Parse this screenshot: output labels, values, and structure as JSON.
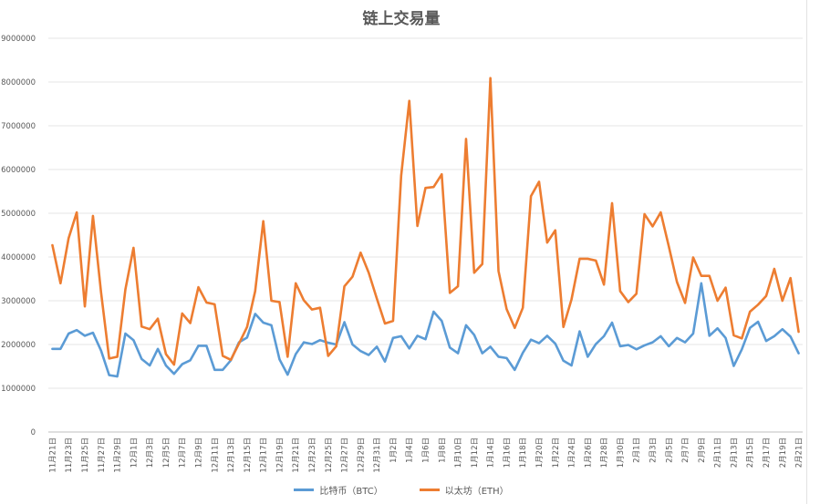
{
  "chart_data": {
    "type": "line",
    "title": "链上交易量",
    "xlabel": "",
    "ylabel": "",
    "ylim": [
      0,
      9000000
    ],
    "yticks": [
      0,
      1000000,
      2000000,
      3000000,
      4000000,
      5000000,
      6000000,
      7000000,
      8000000,
      9000000
    ],
    "ytick_labels": [
      "0",
      "1000000",
      "2000000",
      "3000000",
      "4000000",
      "5000000",
      "6000000",
      "7000000",
      "8000000",
      "9000000"
    ],
    "grid": true,
    "legend_position": "bottom",
    "x": [
      "11月21日",
      "11月22日",
      "11月23日",
      "11月24日",
      "11月25日",
      "11月26日",
      "11月27日",
      "11月28日",
      "11月29日",
      "11月30日",
      "12月1日",
      "12月2日",
      "12月3日",
      "12月4日",
      "12月5日",
      "12月6日",
      "12月7日",
      "12月8日",
      "12月9日",
      "12月10日",
      "12月11日",
      "12月12日",
      "12月13日",
      "12月14日",
      "12月15日",
      "12月16日",
      "12月17日",
      "12月18日",
      "12月19日",
      "12月20日",
      "12月21日",
      "12月22日",
      "12月23日",
      "12月24日",
      "12月25日",
      "12月26日",
      "12月27日",
      "12月28日",
      "12月29日",
      "12月30日",
      "12月31日",
      "1月1日",
      "1月2日",
      "1月3日",
      "1月4日",
      "1月5日",
      "1月6日",
      "1月7日",
      "1月8日",
      "1月9日",
      "1月10日",
      "1月11日",
      "1月12日",
      "1月13日",
      "1月14日",
      "1月15日",
      "1月16日",
      "1月17日",
      "1月18日",
      "1月19日",
      "1月20日",
      "1月21日",
      "1月22日",
      "1月23日",
      "1月24日",
      "1月25日",
      "1月26日",
      "1月27日",
      "1月28日",
      "1月29日",
      "1月30日",
      "1月31日",
      "2月1日",
      "2月2日",
      "2月3日",
      "2月4日",
      "2月5日",
      "2月6日",
      "2月7日",
      "2月8日",
      "2月9日",
      "2月10日",
      "2月11日",
      "2月12日",
      "2月13日",
      "2月14日",
      "2月15日",
      "2月16日",
      "2月17日",
      "2月18日",
      "2月19日",
      "2月20日",
      "2月21日"
    ],
    "x_tick_labels": [
      "11月21日",
      "11月23日",
      "11月25日",
      "11月27日",
      "11月29日",
      "12月1日",
      "12月3日",
      "12月5日",
      "12月7日",
      "12月9日",
      "12月11日",
      "12月13日",
      "12月15日",
      "12月17日",
      "12月19日",
      "12月21日",
      "12月23日",
      "12月25日",
      "12月27日",
      "12月29日",
      "12月31日",
      "1月2日",
      "1月4日",
      "1月6日",
      "1月8日",
      "1月10日",
      "1月12日",
      "1月14日",
      "1月16日",
      "1月18日",
      "1月20日",
      "1月22日",
      "1月24日",
      "1月26日",
      "1月28日",
      "1月30日",
      "2月1日",
      "2月3日",
      "2月5日",
      "2月7日",
      "2月9日",
      "2月11日",
      "2月13日",
      "2月15日",
      "2月17日",
      "2月19日",
      "2月21日"
    ],
    "series": [
      {
        "name": "比特币（BTC）",
        "color": "#5b9bd5",
        "values": [
          1900000,
          1900000,
          2250000,
          2330000,
          2200000,
          2270000,
          1860000,
          1300000,
          1270000,
          2250000,
          2100000,
          1670000,
          1520000,
          1900000,
          1520000,
          1330000,
          1550000,
          1640000,
          1970000,
          1970000,
          1420000,
          1420000,
          1640000,
          2050000,
          2160000,
          2700000,
          2500000,
          2440000,
          1660000,
          1310000,
          1780000,
          2050000,
          2010000,
          2100000,
          2040000,
          2000000,
          2510000,
          2000000,
          1850000,
          1760000,
          1950000,
          1610000,
          2150000,
          2190000,
          1910000,
          2200000,
          2120000,
          2750000,
          2540000,
          1930000,
          1800000,
          2440000,
          2220000,
          1800000,
          1950000,
          1720000,
          1690000,
          1420000,
          1810000,
          2110000,
          2030000,
          2200000,
          2020000,
          1630000,
          1520000,
          2300000,
          1720000,
          2010000,
          2190000,
          2500000,
          1960000,
          1990000,
          1890000,
          1980000,
          2050000,
          2190000,
          1960000,
          2150000,
          2050000,
          2250000,
          3400000,
          2200000,
          2370000,
          2150000,
          1510000,
          1890000,
          2380000,
          2520000,
          2080000,
          2190000,
          2350000,
          2180000,
          1800000
        ]
      },
      {
        "name": "以太坊（ETH）",
        "color": "#ed7d31",
        "values": [
          4270000,
          3400000,
          4430000,
          5020000,
          2870000,
          4940000,
          3190000,
          1680000,
          1720000,
          3260000,
          4210000,
          2410000,
          2350000,
          2590000,
          1780000,
          1540000,
          2710000,
          2490000,
          3310000,
          2960000,
          2920000,
          1740000,
          1650000,
          2020000,
          2400000,
          3220000,
          4820000,
          3000000,
          2970000,
          1720000,
          3400000,
          3010000,
          2800000,
          2840000,
          1740000,
          1960000,
          3330000,
          3550000,
          4100000,
          3640000,
          3050000,
          2480000,
          2540000,
          5860000,
          7570000,
          4710000,
          5580000,
          5600000,
          5890000,
          3180000,
          3330000,
          6700000,
          3640000,
          3840000,
          8090000,
          3680000,
          2810000,
          2380000,
          2840000,
          5390000,
          5720000,
          4330000,
          4610000,
          2400000,
          3030000,
          3960000,
          3960000,
          3920000,
          3370000,
          5230000,
          3220000,
          2970000,
          3160000,
          4980000,
          4700000,
          5020000,
          4240000,
          3430000,
          2950000,
          3990000,
          3570000,
          3570000,
          3000000,
          3300000,
          2210000,
          2140000,
          2750000,
          2910000,
          3110000,
          3730000,
          3000000,
          3520000,
          2290000
        ]
      }
    ]
  }
}
